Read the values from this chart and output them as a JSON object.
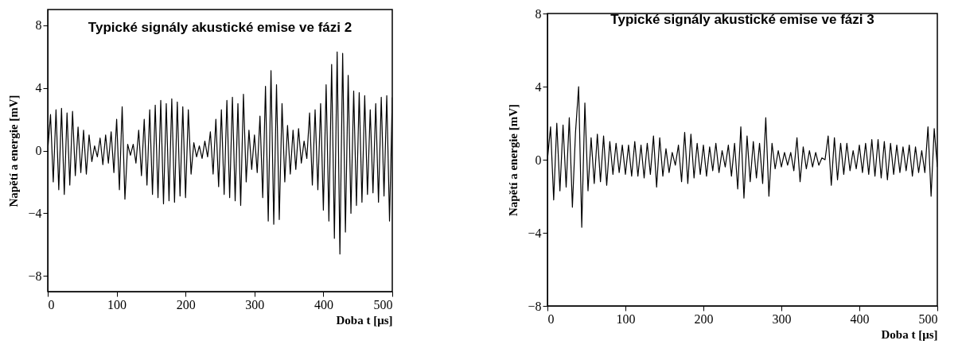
{
  "chart_data": [
    {
      "type": "line",
      "title": "Typické signály akustické emise ve fázi 2",
      "xlabel": "Doba t  [μs]",
      "ylabel": "Napětí a energie [mV]",
      "xlim": [
        0,
        500
      ],
      "xticks": [
        0,
        100,
        200,
        300,
        400,
        500
      ],
      "ylim": [
        -9,
        9
      ],
      "yticks": [
        -8,
        -4,
        0,
        4,
        8
      ],
      "grid": false,
      "marker": "none",
      "line_style": "solid",
      "x": [
        0,
        4,
        8,
        12,
        16,
        20,
        24,
        28,
        32,
        36,
        40,
        44,
        48,
        52,
        56,
        60,
        64,
        68,
        72,
        76,
        80,
        84,
        88,
        92,
        96,
        100,
        104,
        108,
        112,
        116,
        120,
        124,
        128,
        132,
        136,
        140,
        144,
        148,
        152,
        156,
        160,
        164,
        168,
        172,
        176,
        180,
        184,
        188,
        192,
        196,
        200,
        204,
        208,
        212,
        216,
        220,
        224,
        228,
        232,
        236,
        240,
        244,
        248,
        252,
        256,
        260,
        264,
        268,
        272,
        276,
        280,
        284,
        288,
        292,
        296,
        300,
        304,
        308,
        312,
        316,
        320,
        324,
        328,
        332,
        336,
        340,
        344,
        348,
        352,
        356,
        360,
        364,
        368,
        372,
        376,
        380,
        384,
        388,
        392,
        396,
        400,
        404,
        408,
        412,
        416,
        420,
        424,
        428,
        432,
        436,
        440,
        444,
        448,
        452,
        456,
        460,
        464,
        468,
        472,
        476,
        480,
        484,
        488,
        492,
        496,
        500
      ],
      "series": [
        {
          "color": "#000000",
          "values": [
            0,
            2.3,
            -2.0,
            2.6,
            -2.5,
            2.7,
            -2.8,
            2.4,
            -2.2,
            2.5,
            -1.6,
            1.5,
            -1.4,
            1.3,
            -1.5,
            1.0,
            -0.7,
            0.3,
            -0.4,
            0.8,
            -0.9,
            1.0,
            -0.8,
            1.2,
            -1.4,
            2.0,
            -2.5,
            2.8,
            -3.1,
            0.4,
            -0.3,
            0.4,
            -0.8,
            1.3,
            -1.6,
            2.0,
            -2.2,
            2.6,
            -2.8,
            2.9,
            -3.0,
            3.2,
            -3.4,
            3.0,
            -3.2,
            3.3,
            -3.3,
            3.1,
            -2.9,
            2.8,
            -3.0,
            2.6,
            -1.5,
            0.5,
            -0.4,
            0.3,
            -0.5,
            0.6,
            -0.4,
            1.2,
            -1.5,
            2.0,
            -2.3,
            2.6,
            -2.8,
            3.2,
            -3.0,
            3.4,
            -3.2,
            3.0,
            -3.5,
            3.6,
            -2.0,
            1.3,
            -1.2,
            1.0,
            -1.4,
            2.2,
            -3.0,
            4.1,
            -4.5,
            5.1,
            -4.7,
            4.2,
            -4.4,
            3.0,
            -2.0,
            1.6,
            -1.5,
            1.3,
            -1.2,
            1.4,
            -0.8,
            0.6,
            -0.5,
            2.4,
            -2.2,
            2.6,
            -2.5,
            3.0,
            -3.8,
            4.2,
            -4.5,
            5.5,
            -5.6,
            6.3,
            -6.6,
            6.2,
            -5.2,
            4.8,
            -4.0,
            3.8,
            -3.5,
            3.7,
            -3.3,
            3.5,
            -2.8,
            2.6,
            -2.7,
            3.0,
            -3.3,
            3.4,
            -2.9,
            3.5,
            -4.5,
            3.4
          ]
        }
      ]
    },
    {
      "type": "line",
      "title": "Typické signály akustické emise ve fázi 3",
      "xlabel": "Doba t  [μs]",
      "ylabel": "Napětí a energie [mV]",
      "xlim": [
        0,
        500
      ],
      "xticks": [
        0,
        100,
        200,
        300,
        400,
        500
      ],
      "ylim": [
        -8,
        8
      ],
      "yticks": [
        -8,
        -4,
        0,
        4,
        8
      ],
      "grid": false,
      "marker": "none",
      "line_style": "solid",
      "x": [
        0,
        4,
        8,
        12,
        16,
        20,
        24,
        28,
        32,
        36,
        40,
        44,
        48,
        52,
        56,
        60,
        64,
        68,
        72,
        76,
        80,
        84,
        88,
        92,
        96,
        100,
        104,
        108,
        112,
        116,
        120,
        124,
        128,
        132,
        136,
        140,
        144,
        148,
        152,
        156,
        160,
        164,
        168,
        172,
        176,
        180,
        184,
        188,
        192,
        196,
        200,
        204,
        208,
        212,
        216,
        220,
        224,
        228,
        232,
        236,
        240,
        244,
        248,
        252,
        256,
        260,
        264,
        268,
        272,
        276,
        280,
        284,
        288,
        292,
        296,
        300,
        304,
        308,
        312,
        316,
        320,
        324,
        328,
        332,
        336,
        340,
        344,
        348,
        352,
        356,
        360,
        364,
        368,
        372,
        376,
        380,
        384,
        388,
        392,
        396,
        400,
        404,
        408,
        412,
        416,
        420,
        424,
        428,
        432,
        436,
        440,
        444,
        448,
        452,
        456,
        460,
        464,
        468,
        472,
        476,
        480,
        484,
        488,
        492,
        496,
        500
      ],
      "series": [
        {
          "color": "#000000",
          "values": [
            0,
            1.8,
            -2.2,
            2.0,
            -1.7,
            1.9,
            -1.5,
            2.3,
            -2.6,
            1.5,
            4.0,
            -3.7,
            3.1,
            -1.7,
            1.2,
            -1.3,
            1.4,
            -1.2,
            1.3,
            -1.4,
            1.0,
            -0.8,
            0.9,
            -0.7,
            0.8,
            -0.8,
            0.8,
            -0.9,
            1.0,
            -0.9,
            0.8,
            -1.0,
            0.9,
            -0.8,
            1.3,
            -1.5,
            1.2,
            -0.9,
            0.6,
            -0.7,
            0.4,
            -0.3,
            0.8,
            -1.2,
            1.5,
            -1.3,
            1.4,
            -1.0,
            0.9,
            -0.8,
            0.8,
            -0.9,
            0.7,
            -0.6,
            0.9,
            -0.7,
            0.5,
            -0.4,
            0.8,
            -0.9,
            0.9,
            -1.6,
            1.8,
            -2.1,
            1.3,
            -1.2,
            1.0,
            -1.0,
            0.9,
            -1.3,
            2.3,
            -2.0,
            0.9,
            -0.5,
            0.5,
            -0.4,
            0.4,
            -0.3,
            0.4,
            -0.6,
            1.2,
            -1.2,
            0.7,
            -0.5,
            0.5,
            -0.4,
            0.4,
            -0.3,
            0.1,
            0,
            1.3,
            -1.4,
            1.2,
            -1.1,
            0.9,
            -0.8,
            0.9,
            -0.6,
            0.5,
            -0.5,
            0.8,
            -0.7,
            0.9,
            -0.8,
            1.1,
            -0.9,
            1.1,
            -1.0,
            1.0,
            -1.1,
            0.9,
            -0.8,
            0.8,
            -0.7,
            0.7,
            -0.6,
            0.8,
            -0.9,
            0.7,
            -0.7,
            0.5,
            -0.7,
            1.8,
            -2.0,
            1.7,
            -0.4
          ]
        }
      ]
    }
  ]
}
